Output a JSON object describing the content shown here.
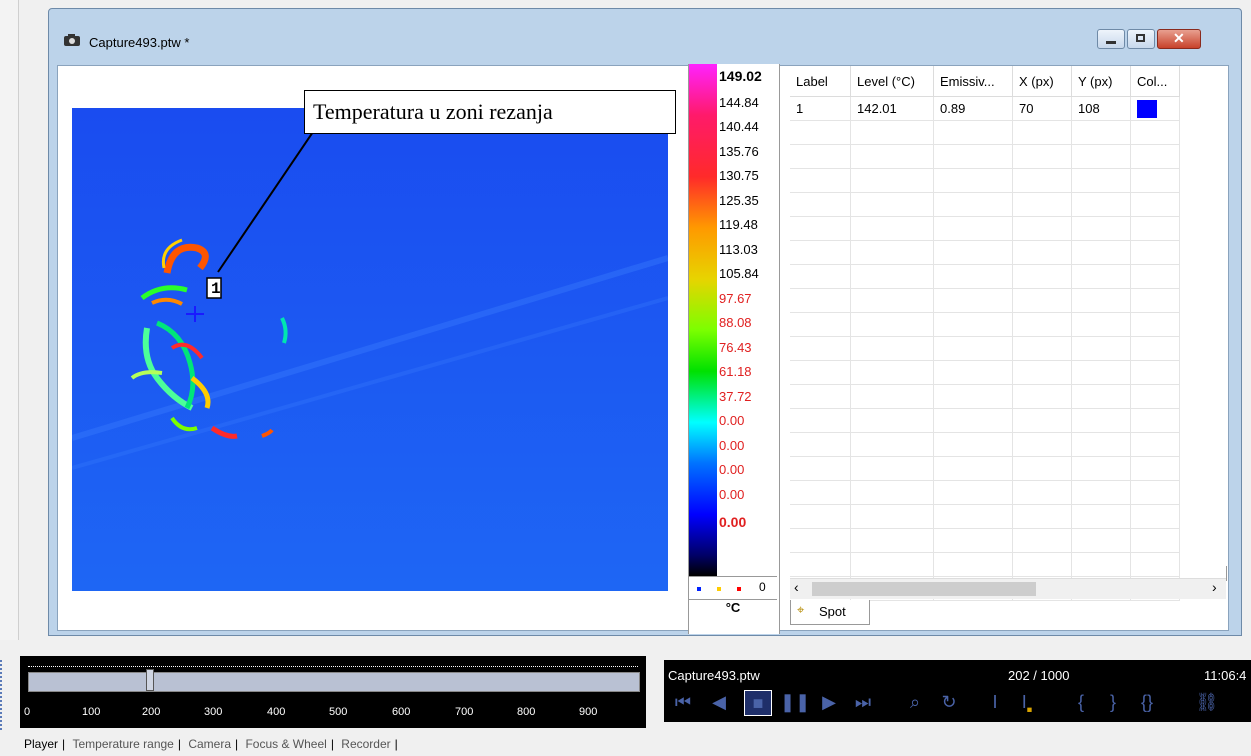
{
  "window": {
    "title": "Capture493.ptw *",
    "annotation_text": "Temperatura u zoni rezanja",
    "spot_label": "1"
  },
  "scale": {
    "max": "149.02",
    "labels": [
      "144.84",
      "140.44",
      "135.76",
      "130.75",
      "125.35",
      "119.48",
      "113.03",
      "105.84",
      "97.67",
      "88.08",
      "76.43",
      "61.18",
      "37.72",
      "0.00",
      "0.00",
      "0.00",
      "0.00"
    ],
    "min": "0.00",
    "footer_counter": "0",
    "unit": "°C"
  },
  "table": {
    "columns": [
      "Label",
      "Level (°C)",
      "Emissiv...",
      "X (px)",
      "Y (px)",
      "Col..."
    ],
    "rows": [
      {
        "label": "1",
        "level": "142.01",
        "emissivity": "0.89",
        "x": "70",
        "y": "108",
        "color": "#0000ff"
      }
    ],
    "tab_label": "Spot"
  },
  "player": {
    "ticks": [
      "0",
      "100",
      "200",
      "300",
      "400",
      "500",
      "600",
      "700",
      "800",
      "900"
    ],
    "slider_value": 200
  },
  "controls": {
    "filename": "Capture493.ptw",
    "frame": "202 / 1000",
    "time": "11:06:4"
  },
  "bottom_tabs": [
    "Player",
    "Temperature range",
    "Camera",
    "Focus & Wheel",
    "Recorder"
  ]
}
